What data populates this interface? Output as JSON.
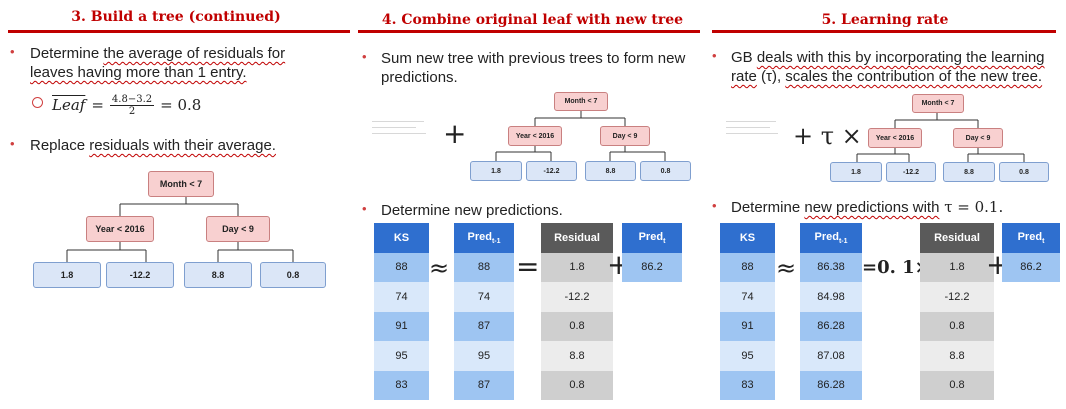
{
  "col1": {
    "title": "3. Build a tree (continued)",
    "b1_pre": "Determine ",
    "b1_wavy": "the average of residuals for leaves having more than 1 entry.",
    "formula_lhs": "Leaf",
    "formula_num": "4.8−3.2",
    "formula_den": "2",
    "formula_rhs": "= 0.8",
    "b2_pre": "Replace ",
    "b2_wavy": "residuals with their average.",
    "tree": {
      "root": "Month < 7",
      "left": "Year < 2016",
      "right": "Day < 9",
      "leaves": [
        "1.8",
        "-12.2",
        "8.8",
        "0.8"
      ]
    }
  },
  "col2": {
    "title": "4. Combine original leaf with new tree",
    "b1": "Sum new tree with previous trees to form new predictions.",
    "plus": "+",
    "tree": {
      "root": "Month < 7",
      "left": "Year < 2016",
      "right": "Day < 9",
      "leaves": [
        "1.8",
        "-12.2",
        "8.8",
        "0.8"
      ]
    },
    "b2": "Determine new predictions.",
    "table": {
      "headers": [
        "KS",
        "Pred",
        "Residual",
        "Pred"
      ],
      "pred_prev_sub": "t-1",
      "pred_sub": "t",
      "ks": [
        "88",
        "74",
        "91",
        "95",
        "83"
      ],
      "pred_prev": [
        "88",
        "74",
        "87",
        "95",
        "87"
      ],
      "residual": [
        "1.8",
        "-12.2",
        "0.8",
        "8.8",
        "0.8"
      ],
      "pred_t": [
        "86.2"
      ]
    },
    "ops": {
      "approx": "≈",
      "eq": "=",
      "plus": "+"
    }
  },
  "col3": {
    "title": "5. Learning rate",
    "b1_pre": "GB ",
    "b1_wavy": "deals with this by incorporating the learning rate",
    "b1_tau": " (τ), ",
    "b1_wavy2": "scales the contribution of the new tree.",
    "plus_tau": "+ τ ×",
    "tree": {
      "root": "Month < 7",
      "left": "Year < 2016",
      "right": "Day < 9",
      "leaves": [
        "1.8",
        "-12.2",
        "8.8",
        "0.8"
      ]
    },
    "b2_pre": "Determine ",
    "b2_wavy": "new predictions with",
    "b2_post": " τ = 0.1.",
    "table": {
      "headers": [
        "KS",
        "Pred",
        "Residual",
        "Pred"
      ],
      "pred_prev_sub": "t-1",
      "pred_sub": "t",
      "ks": [
        "88",
        "74",
        "91",
        "95",
        "83"
      ],
      "pred_prev": [
        "86.38",
        "84.98",
        "86.28",
        "87.08",
        "86.28"
      ],
      "residual": [
        "1.8",
        "-12.2",
        "0.8",
        "8.8",
        "0.8"
      ],
      "pred_t": [
        "86.2"
      ]
    },
    "ops": {
      "approx": "≈",
      "eq": "=0. 1×",
      "plus": "+"
    }
  }
}
